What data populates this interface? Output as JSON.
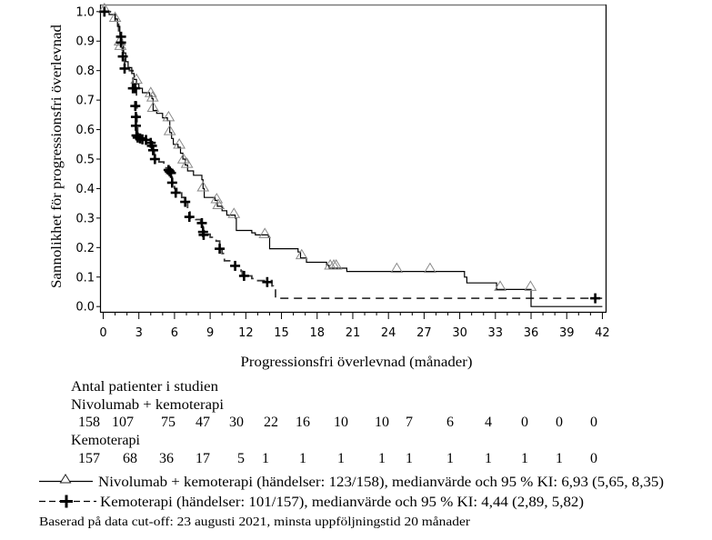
{
  "chart_data": {
    "type": "line",
    "subtype": "kaplan-meier-step",
    "title": "",
    "xlabel": "Progressionsfri överlevnad (månader)",
    "ylabel": "Sannolikhet för progressionsfri överlevnad",
    "xlim": [
      0,
      42
    ],
    "ylim": [
      0,
      1
    ],
    "grid": false,
    "x_ticks": [
      0,
      3,
      6,
      9,
      12,
      15,
      18,
      21,
      24,
      27,
      30,
      33,
      36,
      39,
      42
    ],
    "y_ticks": [
      "0.0",
      "0.1",
      "0.2",
      "0.3",
      "0.4",
      "0.5",
      "0.6",
      "0.7",
      "0.8",
      "0.9",
      "1.0"
    ],
    "series": [
      {
        "name": "Nivolumab + kemoterapi",
        "line_style": "solid",
        "marker": "triangle",
        "line_color": "#000000",
        "marker_color": "#8a8a8a",
        "steps": [
          [
            0,
            1.0
          ],
          [
            0.5,
            0.99
          ],
          [
            1.0,
            0.975
          ],
          [
            1.2,
            0.95
          ],
          [
            1.4,
            0.92
          ],
          [
            1.5,
            0.89
          ],
          [
            1.7,
            0.86
          ],
          [
            1.9,
            0.83
          ],
          [
            2.1,
            0.81
          ],
          [
            2.4,
            0.79
          ],
          [
            2.6,
            0.77
          ],
          [
            2.8,
            0.755
          ],
          [
            3.0,
            0.74
          ],
          [
            3.3,
            0.725
          ],
          [
            3.9,
            0.715
          ],
          [
            4.1,
            0.705
          ],
          [
            4.2,
            0.665
          ],
          [
            4.5,
            0.655
          ],
          [
            5.0,
            0.64
          ],
          [
            5.4,
            0.63
          ],
          [
            5.6,
            0.59
          ],
          [
            5.75,
            0.57
          ],
          [
            5.9,
            0.55
          ],
          [
            6.3,
            0.54
          ],
          [
            6.5,
            0.52
          ],
          [
            6.7,
            0.5
          ],
          [
            6.9,
            0.48
          ],
          [
            7.1,
            0.46
          ],
          [
            7.6,
            0.445
          ],
          [
            8.3,
            0.43
          ],
          [
            8.4,
            0.4
          ],
          [
            8.5,
            0.37
          ],
          [
            9.4,
            0.36
          ],
          [
            9.6,
            0.34
          ],
          [
            10.0,
            0.325
          ],
          [
            10.4,
            0.31
          ],
          [
            11.1,
            0.3
          ],
          [
            11.2,
            0.258
          ],
          [
            12.5,
            0.25
          ],
          [
            12.8,
            0.243
          ],
          [
            13.9,
            0.235
          ],
          [
            14.0,
            0.196
          ],
          [
            16.4,
            0.185
          ],
          [
            16.6,
            0.165
          ],
          [
            17.1,
            0.15
          ],
          [
            18.8,
            0.14
          ],
          [
            19.0,
            0.13
          ],
          [
            20.5,
            0.119
          ],
          [
            30.4,
            0.1
          ],
          [
            30.6,
            0.08
          ],
          [
            33.1,
            0.058
          ],
          [
            36.0,
            0.0
          ],
          [
            42.0,
            0.0
          ]
        ],
        "censored": [
          [
            0.1,
            1.0
          ],
          [
            1.0,
            0.97
          ],
          [
            1.4,
            0.89
          ],
          [
            1.45,
            0.875
          ],
          [
            2.8,
            0.76
          ],
          [
            4.0,
            0.715
          ],
          [
            4.15,
            0.7
          ],
          [
            4.2,
            0.665
          ],
          [
            5.5,
            0.633
          ],
          [
            5.6,
            0.586
          ],
          [
            6.4,
            0.54
          ],
          [
            6.75,
            0.49
          ],
          [
            7.05,
            0.475
          ],
          [
            8.4,
            0.395
          ],
          [
            9.55,
            0.355
          ],
          [
            9.7,
            0.335
          ],
          [
            11.0,
            0.305
          ],
          [
            13.6,
            0.237
          ],
          [
            16.7,
            0.165
          ],
          [
            19.1,
            0.13
          ],
          [
            19.4,
            0.13
          ],
          [
            19.6,
            0.13
          ],
          [
            24.7,
            0.119
          ],
          [
            27.5,
            0.119
          ],
          [
            33.4,
            0.058
          ],
          [
            35.95,
            0.058
          ]
        ]
      },
      {
        "name": "Kemoterapi",
        "line_style": "dashed",
        "marker": "plus",
        "line_color": "#3a3a3a",
        "marker_color": "#000000",
        "steps": [
          [
            0,
            1.0
          ],
          [
            0.6,
            0.99
          ],
          [
            1.0,
            0.96
          ],
          [
            1.3,
            0.93
          ],
          [
            1.5,
            0.905
          ],
          [
            1.6,
            0.87
          ],
          [
            1.7,
            0.84
          ],
          [
            1.8,
            0.81
          ],
          [
            2.2,
            0.8
          ],
          [
            2.5,
            0.75
          ],
          [
            2.7,
            0.74
          ],
          [
            2.8,
            0.68
          ],
          [
            2.85,
            0.62
          ],
          [
            2.9,
            0.58
          ],
          [
            3.0,
            0.57
          ],
          [
            3.5,
            0.565
          ],
          [
            3.9,
            0.555
          ],
          [
            4.1,
            0.54
          ],
          [
            4.2,
            0.525
          ],
          [
            4.3,
            0.5
          ],
          [
            4.7,
            0.49
          ],
          [
            5.1,
            0.47
          ],
          [
            5.5,
            0.46
          ],
          [
            5.7,
            0.44
          ],
          [
            5.8,
            0.42
          ],
          [
            6.0,
            0.4
          ],
          [
            6.2,
            0.385
          ],
          [
            6.6,
            0.37
          ],
          [
            6.9,
            0.355
          ],
          [
            7.1,
            0.33
          ],
          [
            7.3,
            0.3
          ],
          [
            7.8,
            0.295
          ],
          [
            8.2,
            0.285
          ],
          [
            8.4,
            0.255
          ],
          [
            8.5,
            0.245
          ],
          [
            9.0,
            0.235
          ],
          [
            9.5,
            0.222
          ],
          [
            9.8,
            0.196
          ],
          [
            10.0,
            0.18
          ],
          [
            10.2,
            0.155
          ],
          [
            10.9,
            0.15
          ],
          [
            11.1,
            0.138
          ],
          [
            11.6,
            0.12
          ],
          [
            11.7,
            0.104
          ],
          [
            12.5,
            0.095
          ],
          [
            12.7,
            0.088
          ],
          [
            14.2,
            0.07
          ],
          [
            14.3,
            0.063
          ],
          [
            14.5,
            0.028
          ],
          [
            42.0,
            0.028
          ]
        ],
        "censored": [
          [
            0.1,
            1.0
          ],
          [
            1.5,
            0.915
          ],
          [
            1.5,
            0.895
          ],
          [
            1.65,
            0.848
          ],
          [
            1.8,
            0.807
          ],
          [
            2.5,
            0.74
          ],
          [
            2.7,
            0.74
          ],
          [
            2.7,
            0.68
          ],
          [
            2.75,
            0.643
          ],
          [
            2.75,
            0.613
          ],
          [
            2.8,
            0.58
          ],
          [
            2.9,
            0.573
          ],
          [
            3.1,
            0.57
          ],
          [
            3.3,
            0.567
          ],
          [
            3.6,
            0.565
          ],
          [
            4.0,
            0.555
          ],
          [
            4.1,
            0.545
          ],
          [
            4.2,
            0.53
          ],
          [
            4.35,
            0.5
          ],
          [
            5.5,
            0.463
          ],
          [
            5.6,
            0.458
          ],
          [
            5.7,
            0.453
          ],
          [
            5.8,
            0.42
          ],
          [
            6.1,
            0.386
          ],
          [
            6.9,
            0.355
          ],
          [
            7.25,
            0.304
          ],
          [
            8.3,
            0.283
          ],
          [
            8.4,
            0.253
          ],
          [
            8.45,
            0.243
          ],
          [
            9.8,
            0.196
          ],
          [
            11.1,
            0.138
          ],
          [
            11.85,
            0.104
          ],
          [
            13.8,
            0.083
          ],
          [
            41.4,
            0.028
          ]
        ]
      }
    ],
    "risk_table": {
      "title": "Antal patienter i studien",
      "times": [
        0,
        3,
        6,
        9,
        12,
        15,
        18,
        21,
        24,
        27,
        30,
        33,
        36,
        39,
        42
      ],
      "groups": [
        {
          "name": "Nivolumab + kemoterapi",
          "counts": [
            158,
            107,
            75,
            47,
            30,
            22,
            16,
            10,
            10,
            7,
            6,
            4,
            0,
            0,
            0
          ]
        },
        {
          "name": "Kemoterapi",
          "counts": [
            157,
            68,
            36,
            17,
            5,
            1,
            1,
            1,
            1,
            1,
            1,
            1,
            1,
            1,
            0
          ]
        }
      ]
    },
    "legend": [
      {
        "symbol": "solid-line-triangle",
        "label": "Nivolumab + kemoterapi (händelser: 123/158), medianvärde och 95 % KI: 6,93 (5,65, 8,35)"
      },
      {
        "symbol": "dashed-line-plus",
        "label": "Kemoterapi (händelser: 101/157), medianvärde och 95 % KI: 4,44 (2,89, 5,82)"
      }
    ],
    "legend_placement": "bottom",
    "footnote": "Baserad på data cut-off: 23 augusti 2021, minsta uppföljningstid 20 månader"
  }
}
